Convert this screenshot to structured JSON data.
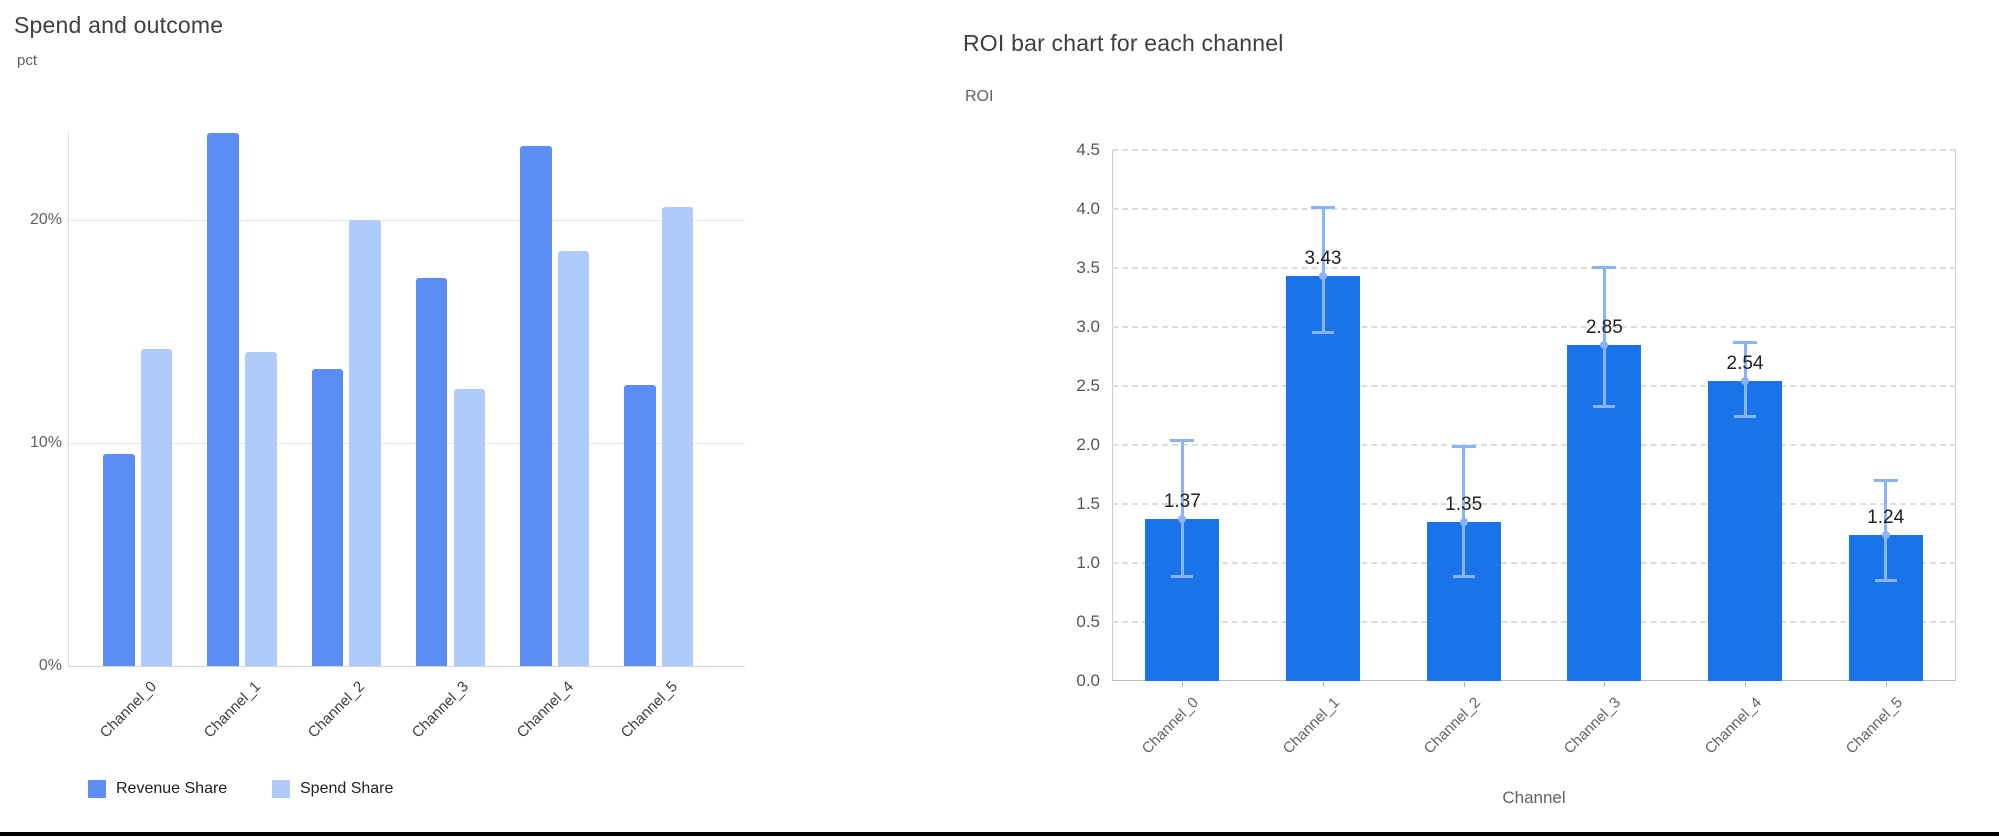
{
  "page": {
    "background": "#ffffff",
    "bottom_border_color": "#000000"
  },
  "chart_data": [
    {
      "type": "bar",
      "title": "Spend and outcome",
      "ylabel": "pct",
      "xlabel": "",
      "categories": [
        "Channel_0",
        "Channel_1",
        "Channel_2",
        "Channel_3",
        "Channel_4",
        "Channel_5"
      ],
      "series": [
        {
          "name": "Revenue Share",
          "color": "#5c8df5",
          "values": [
            9.5,
            23.9,
            13.3,
            17.4,
            23.3,
            12.6
          ]
        },
        {
          "name": "Spend Share",
          "color": "#aecbfa",
          "values": [
            14.2,
            14.1,
            20.0,
            12.4,
            18.6,
            20.6
          ]
        }
      ],
      "y_ticks": [
        {
          "value": 0,
          "label": "0%"
        },
        {
          "value": 10,
          "label": "10%"
        },
        {
          "value": 20,
          "label": "20%"
        }
      ],
      "ylim": [
        0,
        24
      ],
      "grid": "solid",
      "legend_position": "bottom-left"
    },
    {
      "type": "bar",
      "title": "ROI bar chart for each channel",
      "ylabel": "ROI",
      "xlabel": "Channel",
      "categories": [
        "Channel_0",
        "Channel_1",
        "Channel_2",
        "Channel_3",
        "Channel_4",
        "Channel_5"
      ],
      "values": [
        1.37,
        3.43,
        1.35,
        2.85,
        2.54,
        1.24
      ],
      "value_labels": [
        "1.37",
        "3.43",
        "1.35",
        "2.85",
        "2.54",
        "1.24"
      ],
      "error_low": [
        0.88,
        2.95,
        0.88,
        2.32,
        2.24,
        0.85
      ],
      "error_high": [
        2.04,
        4.02,
        1.99,
        3.51,
        2.87,
        1.7
      ],
      "bar_color": "#1a73e8",
      "error_color": "#8ab4f8",
      "y_ticks": [
        "0.0",
        "0.5",
        "1.0",
        "1.5",
        "2.0",
        "2.5",
        "3.0",
        "3.5",
        "4.0",
        "4.5"
      ],
      "ylim": [
        0,
        4.5
      ],
      "grid": "dashed",
      "legend_position": "none"
    }
  ]
}
